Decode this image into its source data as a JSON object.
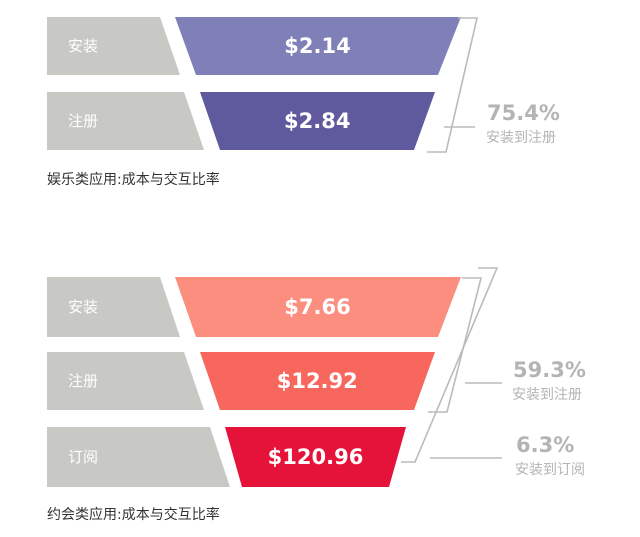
{
  "chart_data": [
    {
      "type": "funnel",
      "caption": "娱乐类应用:成本与交互比率",
      "stages": [
        {
          "label": "安装",
          "value": "$2.14",
          "color": "#8080b8"
        },
        {
          "label": "注册",
          "value": "$2.84",
          "color": "#5f5a9e"
        }
      ],
      "brackets": [
        {
          "percent": "75.4%",
          "text": "安装到注册"
        }
      ]
    },
    {
      "type": "funnel",
      "caption": "约会类应用:成本与交互比率",
      "stages": [
        {
          "label": "安装",
          "value": "$7.66",
          "color": "#fc8e80"
        },
        {
          "label": "注册",
          "value": "$12.92",
          "color": "#f8675e"
        },
        {
          "label": "订阅",
          "value": "$120.96",
          "color": "#e5123a"
        }
      ],
      "brackets": [
        {
          "percent": "59.3%",
          "text": "安装到注册"
        },
        {
          "percent": "6.3%",
          "text": "安装到订阅"
        }
      ]
    }
  ],
  "colors": {
    "label_bg": "#c8c8c4",
    "label_text": "#ffffff",
    "bracket_line": "#bbbbbb",
    "bracket_text": "#b4b4b4"
  }
}
